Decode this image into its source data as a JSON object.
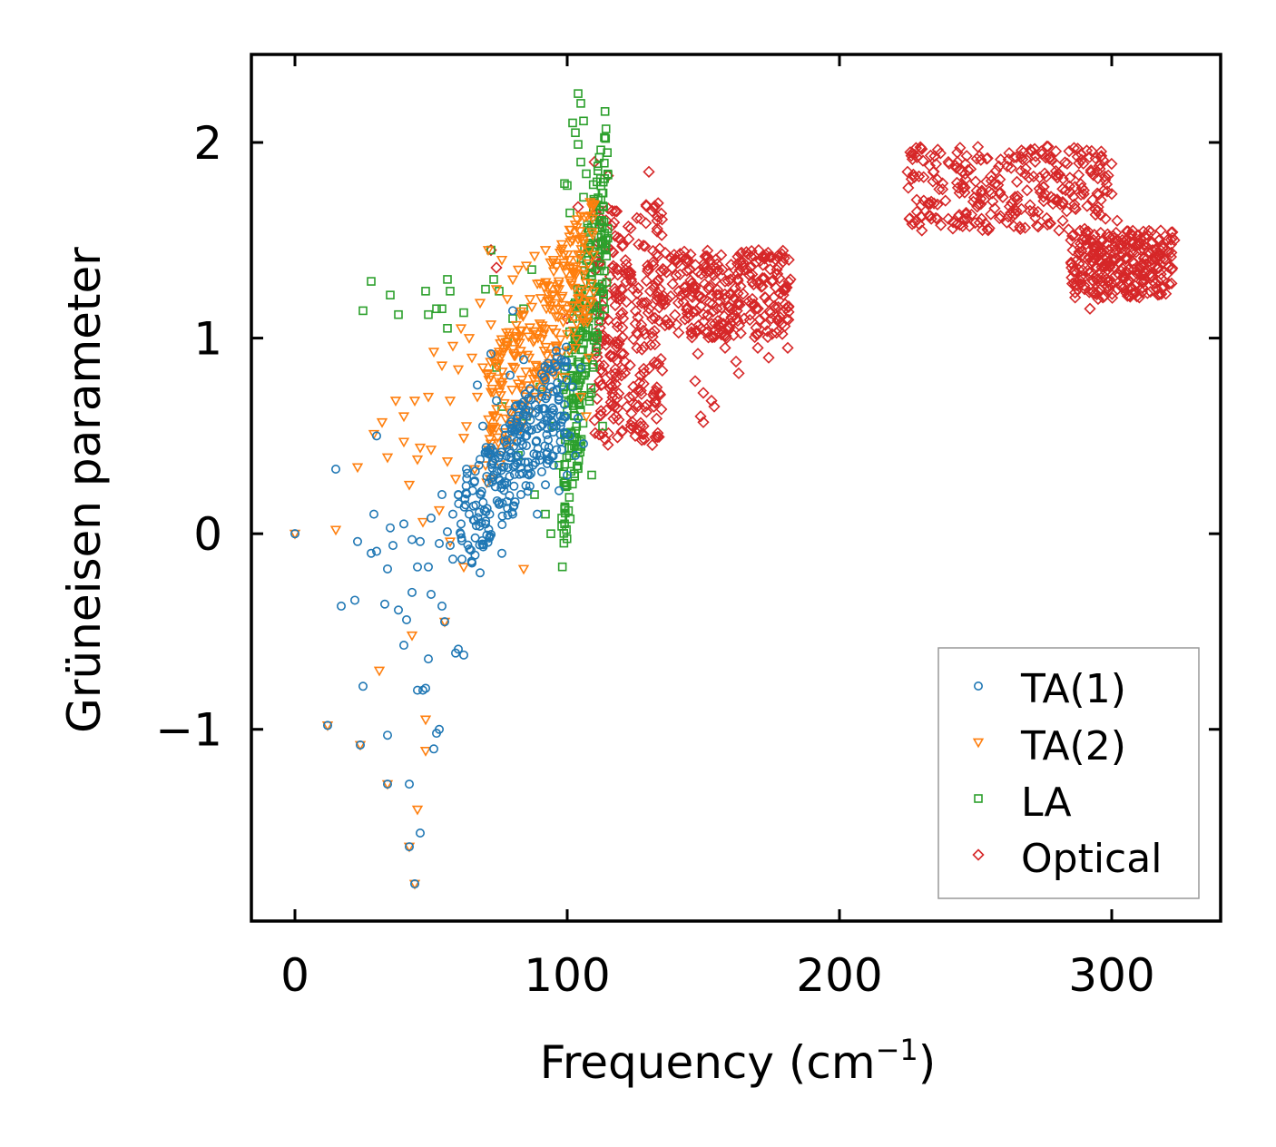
{
  "chart_data": {
    "type": "scatter",
    "title": "",
    "xlabel": "Frequency (cm",
    "xlabel_exponent": "−1",
    "xlabel_suffix": ")",
    "ylabel": "Grüneisen parameter",
    "xlim": [
      -16,
      340
    ],
    "ylim": [
      -1.98,
      2.45
    ],
    "xticks": [
      0,
      100,
      200,
      300
    ],
    "xtick_labels": [
      "0",
      "100",
      "200",
      "300"
    ],
    "yticks": [
      -1,
      0,
      1,
      2
    ],
    "ytick_labels": [
      "−1",
      "0",
      "1",
      "2"
    ],
    "grid": false,
    "legend_position": "lower-right",
    "series": [
      {
        "name": "TA(1)",
        "marker": "circle",
        "color": "#1f77b4",
        "points": [
          [
            0,
            0
          ],
          [
            12,
            -0.98
          ],
          [
            15,
            0.33
          ],
          [
            17,
            -0.37
          ],
          [
            22,
            -0.34
          ],
          [
            23,
            -0.04
          ],
          [
            24,
            -1.08
          ],
          [
            25,
            -0.78
          ],
          [
            28,
            -0.1
          ],
          [
            29,
            0.1
          ],
          [
            30,
            -0.09
          ],
          [
            30,
            0.5
          ],
          [
            33,
            -0.36
          ],
          [
            34,
            -1.28
          ],
          [
            34,
            -0.18
          ],
          [
            34,
            -1.03
          ],
          [
            35,
            0.03
          ],
          [
            36,
            -0.06
          ],
          [
            38,
            -0.39
          ],
          [
            40,
            -0.57
          ],
          [
            40,
            0.05
          ],
          [
            41,
            -0.44
          ],
          [
            42,
            -1.6
          ],
          [
            42,
            -1.28
          ],
          [
            43,
            -0.3
          ],
          [
            43,
            -0.03
          ],
          [
            44,
            -1.79
          ],
          [
            45,
            -0.8
          ],
          [
            45,
            -0.17
          ],
          [
            46,
            -1.53
          ],
          [
            46,
            -0.04
          ],
          [
            47,
            -0.8
          ],
          [
            48,
            -0.79
          ],
          [
            49,
            -0.17
          ],
          [
            49,
            -0.64
          ],
          [
            50,
            0.08
          ],
          [
            50,
            -0.31
          ],
          [
            51,
            -1.1
          ],
          [
            52,
            -1.02
          ],
          [
            53,
            -0.05
          ],
          [
            53,
            -1.0
          ],
          [
            54,
            -0.37
          ],
          [
            54,
            0.2
          ],
          [
            55,
            -0.45
          ],
          [
            56,
            0.01
          ],
          [
            57,
            -0.06
          ],
          [
            58,
            0.1
          ],
          [
            58,
            -0.13
          ],
          [
            59,
            -0.61
          ],
          [
            60,
            -0.59
          ],
          [
            60,
            0.2
          ],
          [
            61,
            0.05
          ],
          [
            62,
            -0.62
          ],
          [
            63,
            0.33
          ],
          [
            64,
            0.1
          ],
          [
            65,
            -0.15
          ],
          [
            66,
            0.27
          ],
          [
            67,
            0.76
          ],
          [
            68,
            -0.2
          ],
          [
            69,
            0.55
          ],
          [
            70,
            0.05
          ],
          [
            71,
            0.42
          ],
          [
            72,
            0.92
          ],
          [
            73,
            0.3
          ],
          [
            74,
            0.68
          ],
          [
            75,
            0.15
          ],
          [
            76,
            -0.1
          ],
          [
            77,
            0.25
          ],
          [
            78,
            0.48
          ],
          [
            79,
            0.81
          ],
          [
            80,
            1.14
          ],
          [
            80,
            0.1
          ],
          [
            81,
            0.35
          ],
          [
            82,
            0.6
          ],
          [
            83,
            0.2
          ],
          [
            84,
            0.89
          ],
          [
            85,
            0.45
          ],
          [
            86,
            0.3
          ],
          [
            87,
            0.53
          ],
          [
            88,
            0.72
          ],
          [
            89,
            0.1
          ],
          [
            90,
            0.4
          ],
          [
            91,
            0.64
          ],
          [
            92,
            0.25
          ],
          [
            93,
            0.48
          ],
          [
            94,
            0.75
          ],
          [
            95,
            0.35
          ],
          [
            96,
            0.55
          ],
          [
            97,
            0.22
          ],
          [
            98,
            0.43
          ],
          [
            99,
            0.66
          ],
          [
            100,
            0.3
          ],
          [
            101,
            0.5
          ],
          [
            102,
            0.75
          ],
          [
            103,
            0.4
          ],
          [
            104,
            0.59
          ],
          [
            105,
            0.85
          ],
          [
            106,
            0.46
          ]
        ],
        "cloud": {
          "x": [
            60,
            100
          ],
          "y": [
            0.0,
            0.75
          ],
          "count": 260
        }
      },
      {
        "name": "TA(2)",
        "marker": "triangle-down",
        "color": "#ff7f0e",
        "points": [
          [
            0,
            0
          ],
          [
            12,
            -0.98
          ],
          [
            15,
            0.02
          ],
          [
            23,
            0.34
          ],
          [
            24,
            -1.08
          ],
          [
            29,
            0.51
          ],
          [
            31,
            -0.7
          ],
          [
            32,
            0.57
          ],
          [
            34,
            -1.28
          ],
          [
            34,
            0.39
          ],
          [
            37,
            0.68
          ],
          [
            40,
            0.6
          ],
          [
            40,
            0.47
          ],
          [
            42,
            -1.6
          ],
          [
            42,
            0.25
          ],
          [
            43,
            -0.52
          ],
          [
            44,
            -1.79
          ],
          [
            44,
            0.68
          ],
          [
            45,
            0.38
          ],
          [
            45,
            -1.41
          ],
          [
            46,
            0.44
          ],
          [
            47,
            0.06
          ],
          [
            48,
            -1.11
          ],
          [
            48,
            -0.95
          ],
          [
            49,
            0.7
          ],
          [
            50,
            0.43
          ],
          [
            51,
            0.93
          ],
          [
            53,
            0.12
          ],
          [
            54,
            0.86
          ],
          [
            55,
            -0.45
          ],
          [
            56,
            0.37
          ],
          [
            57,
            0.68
          ],
          [
            58,
            0.96
          ],
          [
            59,
            0.28
          ],
          [
            60,
            0.84
          ],
          [
            61,
            1.05
          ],
          [
            62,
            0.49
          ],
          [
            63,
            0.55
          ],
          [
            64,
            1.0
          ],
          [
            65,
            0.9
          ],
          [
            66,
            0.33
          ],
          [
            67,
            0.7
          ],
          [
            68,
            1.18
          ],
          [
            69,
            0.85
          ],
          [
            70,
            0.35
          ],
          [
            71,
            1.45
          ],
          [
            72,
            1.07
          ],
          [
            73,
            0.6
          ],
          [
            74,
            1.25
          ],
          [
            75,
            0.93
          ],
          [
            76,
            1.4
          ],
          [
            77,
            0.8
          ],
          [
            78,
            1.2
          ],
          [
            79,
            0.62
          ],
          [
            80,
            1.3
          ],
          [
            81,
            1.0
          ],
          [
            82,
            1.35
          ],
          [
            83,
            0.75
          ],
          [
            84,
            1.12
          ],
          [
            85,
            1.37
          ],
          [
            86,
            0.9
          ],
          [
            87,
            1.16
          ],
          [
            88,
            1.42
          ],
          [
            89,
            0.83
          ],
          [
            90,
            1.28
          ],
          [
            91,
            1.05
          ],
          [
            92,
            1.45
          ],
          [
            93,
            0.72
          ],
          [
            94,
            1.2
          ],
          [
            95,
            1.4
          ],
          [
            96,
            0.95
          ],
          [
            97,
            1.25
          ],
          [
            98,
            1.48
          ],
          [
            99,
            0.8
          ],
          [
            100,
            1.15
          ],
          [
            101,
            1.36
          ],
          [
            102,
            1.5
          ],
          [
            103,
            0.95
          ],
          [
            104,
            1.2
          ],
          [
            105,
            0.7
          ],
          [
            106,
            1.1
          ],
          [
            107,
            0.6
          ],
          [
            108,
            0.9
          ],
          [
            84,
            -0.18
          ],
          [
            62,
            -0.17
          ],
          [
            57,
            -0.04
          ]
        ],
        "cloud": {
          "x": [
            70,
            110
          ],
          "y": [
            0.55,
            1.45
          ],
          "count": 260
        }
      },
      {
        "name": "LA",
        "marker": "square",
        "color": "#2ca02c",
        "points": [
          [
            25,
            1.14
          ],
          [
            28,
            1.29
          ],
          [
            35,
            1.22
          ],
          [
            38,
            1.12
          ],
          [
            48,
            1.24
          ],
          [
            49,
            1.12
          ],
          [
            52,
            1.15
          ],
          [
            54,
            1.15
          ],
          [
            56,
            1.05
          ],
          [
            56,
            1.3
          ],
          [
            57,
            1.24
          ],
          [
            62,
            1.13
          ],
          [
            70,
            1.25
          ],
          [
            72,
            1.45
          ],
          [
            73,
            1.3
          ],
          [
            74,
            0.85
          ],
          [
            75,
            1.24
          ],
          [
            76,
            0.65
          ],
          [
            78,
            0.98
          ],
          [
            80,
            1.1
          ],
          [
            82,
            0.4
          ],
          [
            84,
            1.15
          ],
          [
            85,
            0.6
          ],
          [
            87,
            1.35
          ],
          [
            88,
            0.2
          ],
          [
            90,
            0.75
          ],
          [
            92,
            0.1
          ],
          [
            94,
            0.0
          ],
          [
            95,
            0.55
          ],
          [
            97,
            0.35
          ],
          [
            98,
            0.08
          ],
          [
            99,
            1.79
          ],
          [
            100,
            1.78
          ],
          [
            101,
            1.64
          ],
          [
            102,
            2.1
          ],
          [
            103,
            2.05
          ],
          [
            104,
            2.25
          ],
          [
            104,
            1.99
          ],
          [
            105,
            1.9
          ],
          [
            105,
            2.2
          ],
          [
            106,
            2.11
          ],
          [
            106,
            1.72
          ],
          [
            107,
            1.84
          ],
          [
            108,
            1.55
          ],
          [
            108,
            0.7
          ],
          [
            109,
            1.3
          ],
          [
            109,
            0.3
          ],
          [
            110,
            1.7
          ],
          [
            111,
            1.0
          ],
          [
            112,
            1.6
          ],
          [
            113,
            0.55
          ],
          [
            114,
            1.45
          ]
        ],
        "cloud": {
          "x": [
            98,
            115
          ],
          "y": [
            0.3,
            1.75
          ],
          "count": 240
        }
      },
      {
        "name": "Optical",
        "marker": "diamond",
        "color": "#d62728",
        "points": [
          [
            72,
            1.45
          ],
          [
            74,
            1.36
          ],
          [
            100,
            1.1
          ],
          [
            104,
            1.67
          ],
          [
            110,
            1.9
          ],
          [
            115,
            1.83
          ],
          [
            118,
            0.6
          ],
          [
            120,
            0.52
          ],
          [
            125,
            0.5
          ],
          [
            128,
            0.55
          ],
          [
            130,
            1.85
          ],
          [
            133,
            1.6
          ],
          [
            140,
            1.4
          ],
          [
            147,
            0.78
          ],
          [
            148,
            0.92
          ],
          [
            149,
            0.6
          ],
          [
            150,
            0.57
          ],
          [
            150,
            0.72
          ],
          [
            152,
            1.25
          ],
          [
            153,
            0.68
          ],
          [
            154,
            0.65
          ],
          [
            155,
            1.15
          ],
          [
            157,
            1.35
          ],
          [
            158,
            0.95
          ],
          [
            160,
            1.3
          ],
          [
            162,
            0.88
          ],
          [
            163,
            0.82
          ],
          [
            165,
            1.1
          ],
          [
            168,
            1.2
          ],
          [
            170,
            0.95
          ],
          [
            172,
            1.3
          ],
          [
            174,
            0.9
          ],
          [
            175,
            1.1
          ],
          [
            177,
            1.35
          ],
          [
            180,
            1.25
          ],
          [
            181,
            0.95
          ],
          [
            182,
            1.3
          ],
          [
            225,
            1.85
          ],
          [
            226,
            1.95
          ],
          [
            230,
            1.97
          ],
          [
            235,
            1.93
          ],
          [
            240,
            1.9
          ],
          [
            245,
            1.85
          ],
          [
            250,
            1.8
          ],
          [
            255,
            1.75
          ],
          [
            260,
            1.72
          ],
          [
            262,
            1.62
          ],
          [
            265,
            1.65
          ],
          [
            270,
            1.68
          ],
          [
            275,
            1.7
          ],
          [
            280,
            1.82
          ],
          [
            282,
            1.6
          ],
          [
            285,
            1.5
          ],
          [
            288,
            1.35
          ],
          [
            290,
            1.25
          ],
          [
            292,
            1.15
          ],
          [
            295,
            1.2
          ],
          [
            298,
            1.3
          ],
          [
            300,
            1.4
          ],
          [
            302,
            1.6
          ],
          [
            305,
            1.5
          ],
          [
            308,
            1.35
          ],
          [
            312,
            1.3
          ],
          [
            315,
            1.45
          ],
          [
            318,
            1.55
          ],
          [
            320,
            1.4
          ],
          [
            322,
            1.35
          ],
          [
            323,
            1.5
          ]
        ],
        "cloud": {
          "bands": [
            [
              110,
              135,
              0.45,
              1.7
            ],
            [
              135,
              182,
              1.0,
              1.45
            ],
            [
              225,
              300,
              1.55,
              1.98
            ],
            [
              285,
              323,
              1.2,
              1.55
            ]
          ],
          "count": 1100
        }
      }
    ]
  }
}
